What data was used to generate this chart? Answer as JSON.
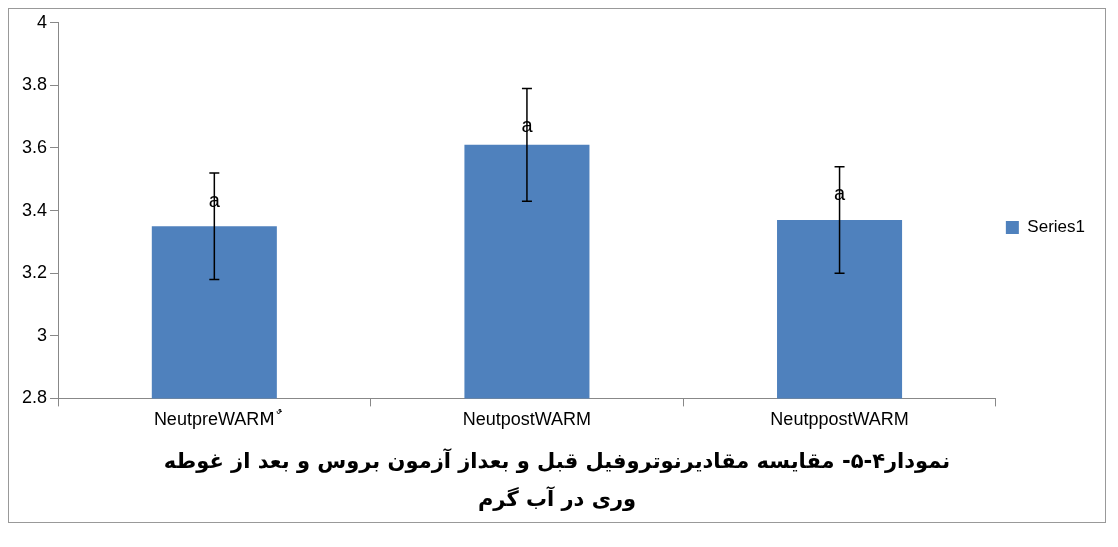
{
  "chart_data": {
    "type": "bar",
    "title": "نمودار۴-۵- مقایسه مقادیرنوتروفیل قبل و  بعداز آزمون بروس و بعد از غوطه وری در آب گرم",
    "categories": [
      "NeutpreWARMٌ",
      "NeutpostWARM",
      "NeutppostWARM"
    ],
    "series": [
      {
        "name": "Series1",
        "color": "#4f81bd",
        "values": [
          3.35,
          3.61,
          3.37
        ],
        "errors": [
          0.17,
          0.18,
          0.17
        ]
      }
    ],
    "ylim": [
      2.8,
      4
    ],
    "yticks": [
      2.8,
      3,
      3.2,
      3.4,
      3.6,
      3.8,
      4
    ],
    "legend": "right",
    "annotations": [
      {
        "text": "a",
        "x": "NeutpreWARMٌ",
        "y": 3.43
      },
      {
        "text": "a",
        "x": "NeutpostWARM",
        "y": 3.67
      },
      {
        "text": "a",
        "x": "NeutppostWARM",
        "y": 3.45
      }
    ]
  }
}
